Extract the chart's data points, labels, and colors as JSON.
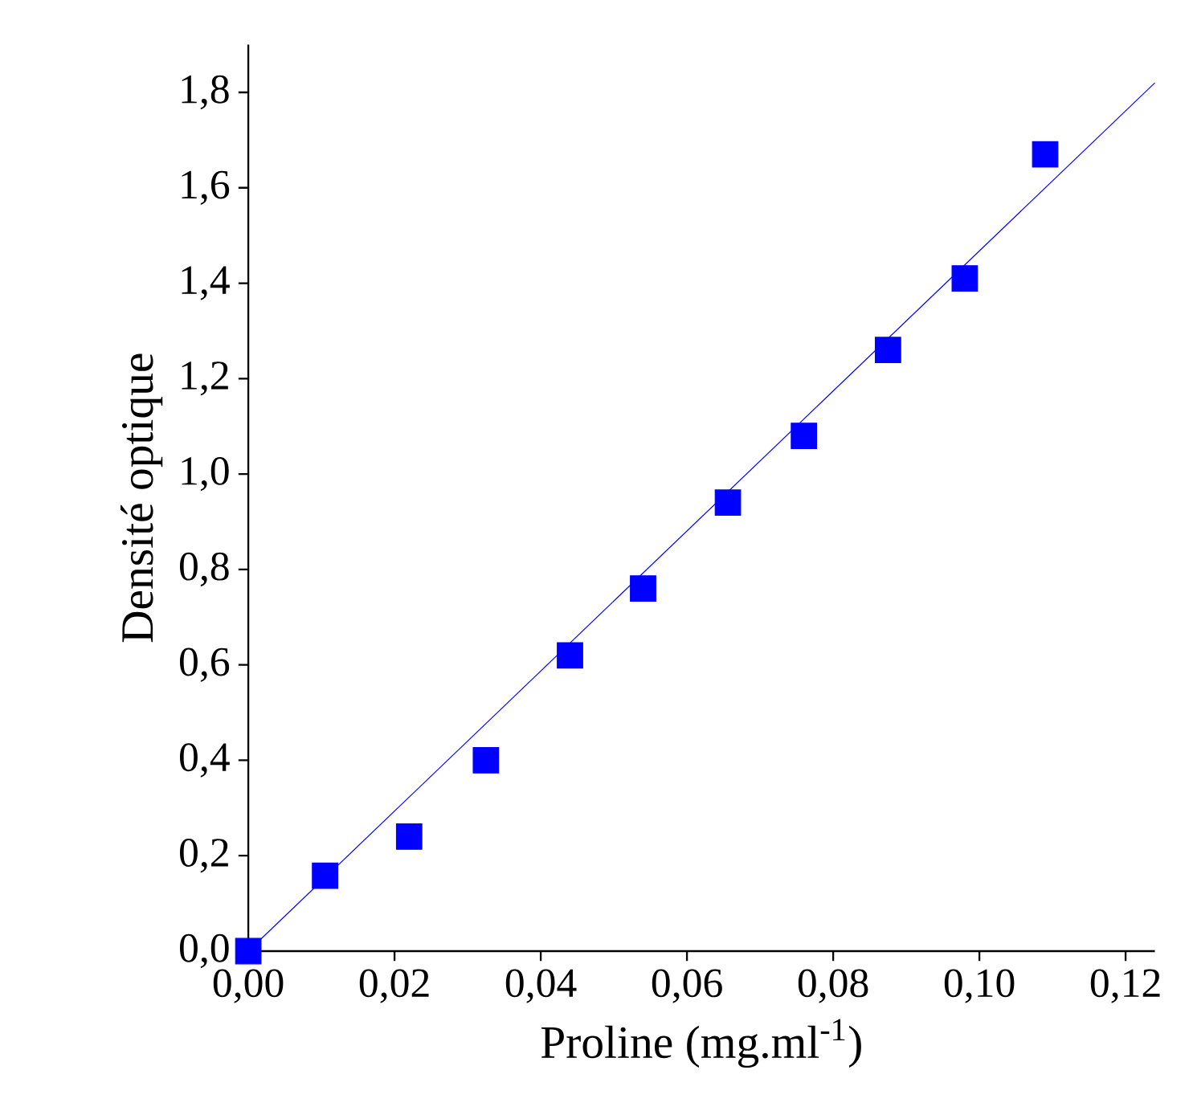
{
  "chart_data": {
    "type": "scatter",
    "xlabel": "Proline (mg.ml$^{-1}$)",
    "ylabel": "Densité optique",
    "marker": "square",
    "grid": false,
    "xlim": [
      0,
      0.124
    ],
    "ylim": [
      0,
      1.9
    ],
    "xticks": [
      {
        "value": 0,
        "label": "0,00"
      },
      {
        "value": 0.02,
        "label": "0,02"
      },
      {
        "value": 0.04,
        "label": "0,04"
      },
      {
        "value": 0.06,
        "label": "0,06"
      },
      {
        "value": 0.08,
        "label": "0,08"
      },
      {
        "value": 0.1,
        "label": "0,10"
      },
      {
        "value": 0.12,
        "label": "0,12"
      }
    ],
    "yticks": [
      {
        "value": 0,
        "label": "0,0"
      },
      {
        "value": 0.2,
        "label": "0,2"
      },
      {
        "value": 0.4,
        "label": "0,4"
      },
      {
        "value": 0.6,
        "label": "0,6"
      },
      {
        "value": 0.8,
        "label": "0,8"
      },
      {
        "value": 1.0,
        "label": "1,0"
      },
      {
        "value": 1.2,
        "label": "1,2"
      },
      {
        "value": 1.4,
        "label": "1,4"
      },
      {
        "value": 1.6,
        "label": "1,6"
      },
      {
        "value": 1.8,
        "label": "1,8"
      }
    ],
    "series": [
      {
        "color": "#0000ff",
        "x": [
          0,
          0.0105,
          0.022,
          0.0325,
          0.044,
          0.054,
          0.0656,
          0.076,
          0.0875,
          0.098,
          0.109
        ],
        "values": [
          0,
          0.158,
          0.24,
          0.4,
          0.62,
          0.76,
          0.94,
          1.08,
          1.26,
          1.41,
          1.67
        ]
      },
      {
        "type": "line",
        "color": "#0000ff",
        "marker": "none",
        "line_style": "solid",
        "x": [
          0,
          0.124
        ],
        "values": [
          0,
          1.82
        ]
      }
    ]
  }
}
